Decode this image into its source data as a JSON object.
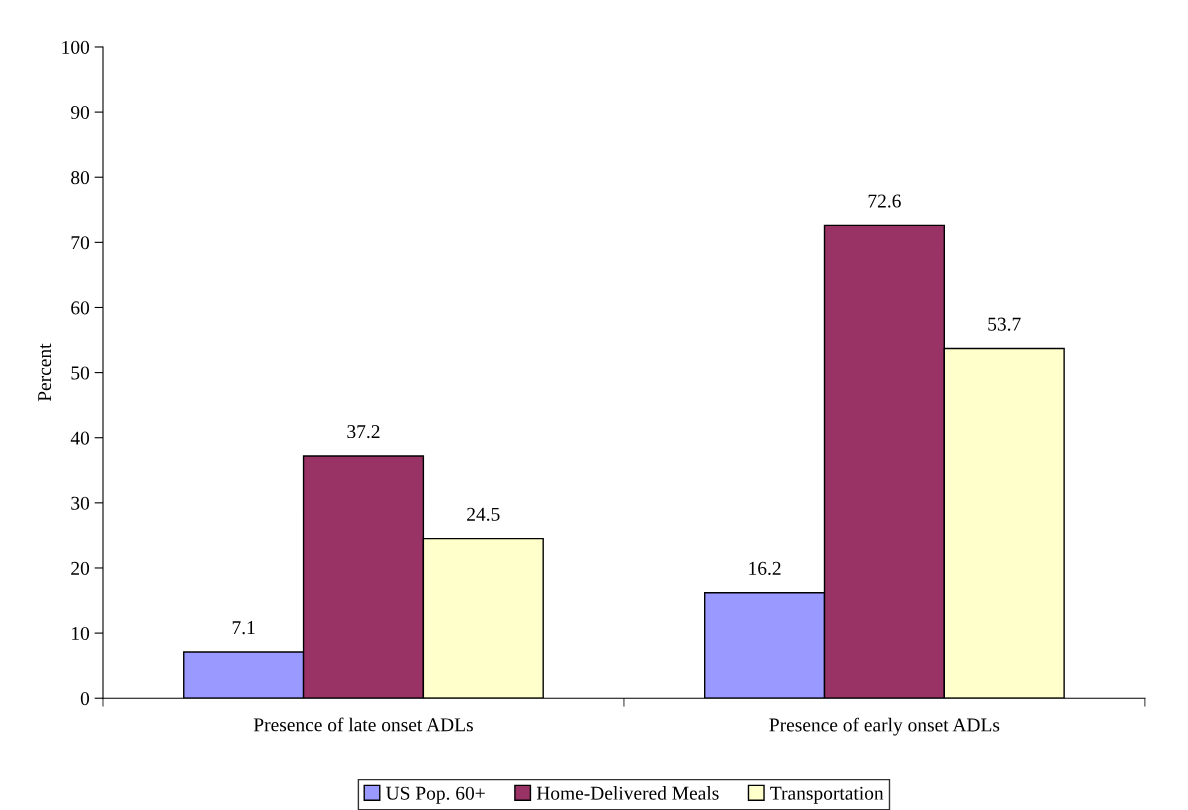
{
  "chart_data": {
    "type": "bar",
    "ylabel": "Percent",
    "categories": [
      "Presence of late onset ADLs",
      "Presence of early onset ADLs"
    ],
    "series": [
      {
        "name": "US Pop. 60+",
        "color": "#9999ff",
        "values": [
          7.1,
          16.2
        ]
      },
      {
        "name": "Home-Delivered Meals",
        "color": "#993366",
        "values": [
          37.2,
          72.6
        ]
      },
      {
        "name": "Transportation",
        "color": "#ffffcc",
        "values": [
          24.5,
          53.7
        ]
      }
    ],
    "ylim": [
      0,
      100
    ],
    "yticks": [
      0,
      10,
      20,
      30,
      40,
      50,
      60,
      70,
      80,
      90,
      100
    ],
    "data_labels": true,
    "legend": "bottom",
    "grid": false
  }
}
